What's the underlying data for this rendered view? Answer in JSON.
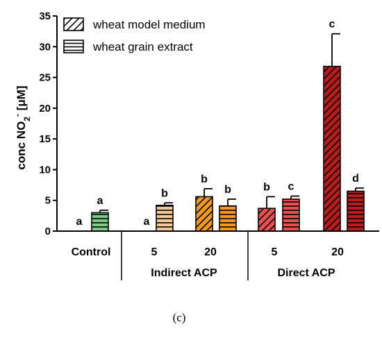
{
  "chart_data": {
    "type": "bar",
    "ylabel_main": "conc NO",
    "ylabel_sub": "2",
    "ylabel_sup": "-",
    "ylabel_unit": " [μM]",
    "ylim": [
      0,
      35
    ],
    "yticks": [
      0,
      5,
      10,
      15,
      20,
      25,
      30,
      35
    ],
    "categories": [
      "Control",
      "5",
      "20",
      "5",
      "20"
    ],
    "groups": [
      {
        "label": "Control",
        "categories": [
          0
        ]
      },
      {
        "label": "Indirect ACP",
        "categories": [
          1,
          2
        ]
      },
      {
        "label": "Direct ACP",
        "categories": [
          3,
          4
        ]
      }
    ],
    "series": [
      {
        "name": "wheat model medium",
        "pattern": "diagonal",
        "values": [
          0,
          0,
          5.6,
          3.7,
          26.8
        ],
        "errors": [
          0,
          0,
          1.3,
          1.9,
          5.3
        ],
        "labels": [
          "a",
          "a",
          "b",
          "b",
          "c"
        ]
      },
      {
        "name": "wheat grain extract",
        "pattern": "horizontal",
        "values": [
          3.0,
          4.2,
          4.1,
          5.2,
          6.5
        ],
        "errors": [
          0.4,
          0.4,
          1.1,
          0.5,
          0.5
        ],
        "labels": [
          "a",
          "b",
          "b",
          "c",
          "d"
        ]
      }
    ],
    "bar_colors": [
      "#7dc98a",
      "#f2c99a",
      "#f39a1e",
      "#e8504f",
      "#b81c1c"
    ],
    "legend_position": "top-left",
    "grid": false
  },
  "caption": "(c)"
}
